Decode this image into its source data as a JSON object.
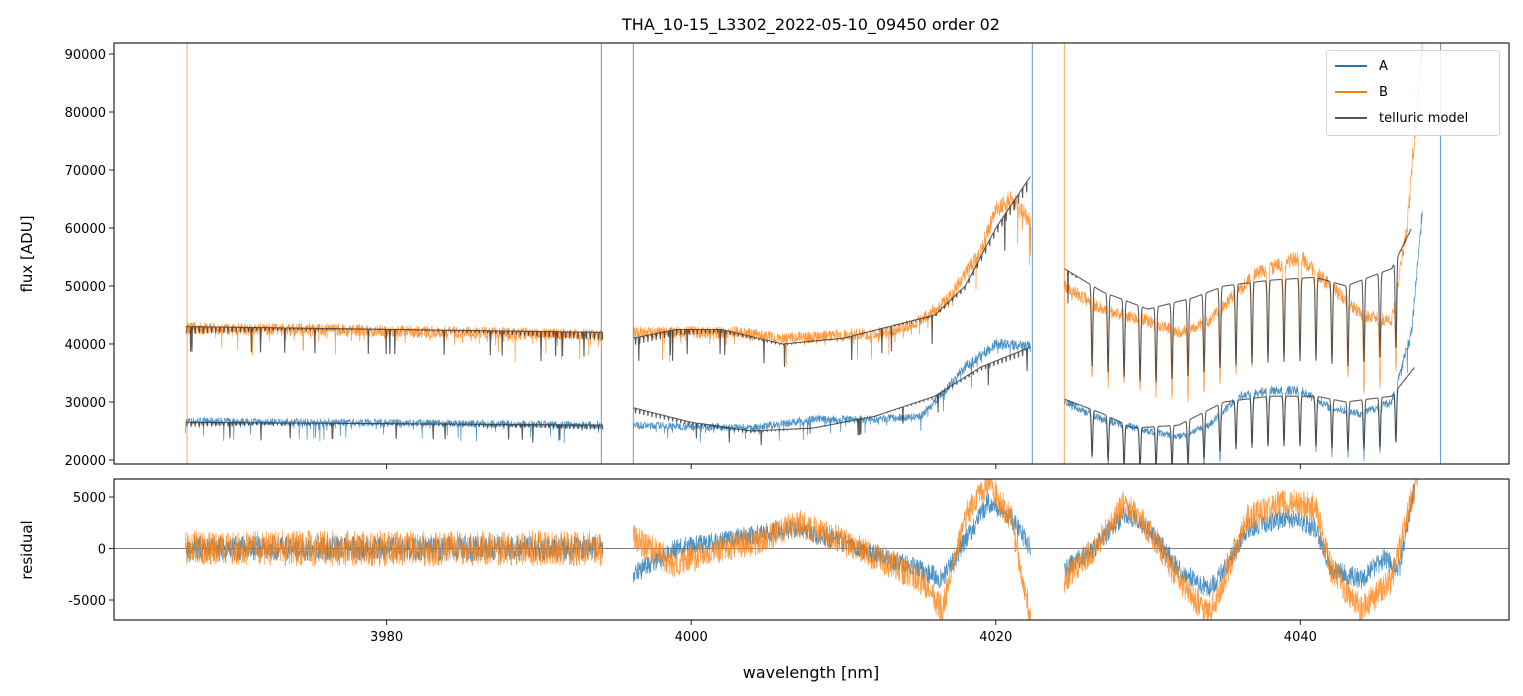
{
  "chart_data": [
    {
      "type": "line",
      "title": "THA_10-15_L3302_2022-05-10_09450  order 02",
      "xlabel": "",
      "ylabel": "flux [ADU]",
      "xlim": [
        3962.1,
        4053.7
      ],
      "ylim": [
        19300,
        91900
      ],
      "yticks": [
        20000,
        30000,
        40000,
        50000,
        60000,
        70000,
        80000,
        90000
      ],
      "xticks": [
        3980,
        4000,
        4020,
        4040
      ],
      "legend": {
        "placement": "top-right",
        "entries": [
          "A",
          "B",
          "telluric model"
        ]
      },
      "colors": {
        "A": "#1f77b4",
        "B": "#ff7f0e",
        "telluric model": "#555555"
      },
      "series": [
        {
          "name": "A",
          "segments": [
            [
              [
                3966.8,
                26700
              ],
              [
                3975,
                26500
              ],
              [
                3985,
                26300
              ],
              [
                3994.2,
                26000
              ]
            ],
            [
              [
                3996.2,
                26000
              ],
              [
                4000,
                25800
              ],
              [
                4004,
                25500
              ],
              [
                4008,
                27000
              ],
              [
                4012,
                27000
              ],
              [
                4015,
                27500
              ],
              [
                4016,
                30000
              ],
              [
                4018,
                36000
              ],
              [
                4020,
                40000
              ],
              [
                4022.3,
                39500
              ]
            ],
            [
              [
                4024.5,
                30000
              ],
              [
                4027,
                27000
              ],
              [
                4030,
                25000
              ],
              [
                4032,
                24000
              ],
              [
                4034,
                26000
              ],
              [
                4036,
                31000
              ],
              [
                4038,
                32000
              ],
              [
                4040,
                32000
              ],
              [
                4042,
                29000
              ],
              [
                4044,
                28000
              ],
              [
                4046,
                30000
              ],
              [
                4047.3,
                42000
              ],
              [
                4048,
                63000
              ]
            ]
          ]
        },
        {
          "name": "B",
          "segments": [
            [
              [
                3966.8,
                42700
              ],
              [
                3975,
                42500
              ],
              [
                3985,
                42000
              ],
              [
                3994.2,
                41500
              ]
            ],
            [
              [
                3996.2,
                42000
              ],
              [
                4003,
                42000
              ],
              [
                4006,
                41000
              ],
              [
                4010,
                41500
              ],
              [
                4013,
                42000
              ],
              [
                4015,
                44000
              ],
              [
                4017,
                48000
              ],
              [
                4019,
                56000
              ],
              [
                4020,
                63000
              ],
              [
                4021,
                65000
              ],
              [
                4022.3,
                61000
              ]
            ],
            [
              [
                4024.5,
                50000
              ],
              [
                4027,
                46000
              ],
              [
                4030,
                44000
              ],
              [
                4032,
                42000
              ],
              [
                4034,
                44000
              ],
              [
                4037,
                52000
              ],
              [
                4040,
                55000
              ],
              [
                4042,
                50000
              ],
              [
                4044,
                45000
              ],
              [
                4046,
                44000
              ],
              [
                4047,
                60000
              ],
              [
                4048,
                92000
              ]
            ]
          ]
        },
        {
          "name": "telluric model (A)",
          "segments": [
            [
              [
                3966.8,
                26500
              ],
              [
                3994.2,
                26000
              ]
            ],
            [
              [
                3996.2,
                29000
              ],
              [
                4000,
                26500
              ],
              [
                4004,
                25000
              ],
              [
                4008,
                25500
              ],
              [
                4012,
                27500
              ],
              [
                4016,
                31000
              ],
              [
                4019,
                36000
              ],
              [
                4022.3,
                39500
              ]
            ],
            [
              [
                4024.5,
                30500
              ],
              [
                4027,
                28000
              ],
              [
                4029,
                25500
              ],
              [
                4032,
                26000
              ],
              [
                4035,
                30000
              ],
              [
                4038,
                31000
              ],
              [
                4041,
                31000
              ],
              [
                4043,
                30000
              ],
              [
                4046,
                31000
              ],
              [
                4047.5,
                36000
              ]
            ]
          ]
        },
        {
          "name": "telluric model (B)",
          "segments": [
            [
              [
                3966.8,
                43000
              ],
              [
                3994.2,
                42000
              ]
            ],
            [
              [
                3996.2,
                41000
              ],
              [
                3999,
                42500
              ],
              [
                4002,
                42500
              ],
              [
                4006,
                40000
              ],
              [
                4010,
                41000
              ],
              [
                4013,
                43000
              ],
              [
                4016,
                45000
              ],
              [
                4018,
                50000
              ],
              [
                4020,
                60000
              ],
              [
                4022.3,
                69000
              ]
            ],
            [
              [
                4024.5,
                53000
              ],
              [
                4027,
                49000
              ],
              [
                4030,
                46000
              ],
              [
                4033,
                48000
              ],
              [
                4035,
                50000
              ],
              [
                4038,
                51000
              ],
              [
                4041,
                51500
              ],
              [
                4043,
                50000
              ],
              [
                4046,
                53000
              ],
              [
                4047.3,
                60000
              ]
            ]
          ]
        }
      ]
    },
    {
      "type": "line",
      "xlabel": "wavelength [nm]",
      "ylabel": "residual",
      "xlim": [
        3962.1,
        4053.7
      ],
      "ylim": [
        -6940,
        6750
      ],
      "yticks": [
        -5000,
        0,
        5000
      ],
      "xticks": [
        3980,
        4000,
        4020,
        4040
      ],
      "series": [
        {
          "name": "A",
          "segments": [
            [
              [
                3966.8,
                0
              ],
              [
                3994.2,
                0
              ]
            ],
            [
              [
                3996.2,
                -2500
              ],
              [
                3999,
                0
              ],
              [
                4003,
                1000
              ],
              [
                4007,
                2000
              ],
              [
                4011,
                0
              ],
              [
                4015,
                -2000
              ],
              [
                4016.5,
                -3000
              ],
              [
                4018.5,
                2000
              ],
              [
                4019.5,
                4500
              ],
              [
                4021,
                3000
              ],
              [
                4022.3,
                0
              ]
            ],
            [
              [
                4024.5,
                -2000
              ],
              [
                4026.5,
                0
              ],
              [
                4028.5,
                3500
              ],
              [
                4030,
                2000
              ],
              [
                4032,
                -2000
              ],
              [
                4034,
                -4000
              ],
              [
                4035,
                -2000
              ],
              [
                4036.5,
                2000
              ],
              [
                4039,
                3000
              ],
              [
                4041,
                2000
              ],
              [
                4042,
                -2000
              ],
              [
                4044,
                -3000
              ],
              [
                4045.5,
                -1000
              ],
              [
                4046.5,
                -2000
              ],
              [
                4047.5,
                6000
              ]
            ]
          ]
        },
        {
          "name": "B",
          "segments": [
            [
              [
                3966.8,
                0
              ],
              [
                3994.2,
                0
              ]
            ],
            [
              [
                3996.2,
                1000
              ],
              [
                3999,
                -1500
              ],
              [
                4002,
                0
              ],
              [
                4005,
                1000
              ],
              [
                4007,
                2500
              ],
              [
                4011,
                0
              ],
              [
                4015,
                -3000
              ],
              [
                4016.5,
                -6000
              ],
              [
                4018,
                3000
              ],
              [
                4019.5,
                6500
              ],
              [
                4021,
                3000
              ],
              [
                4022.3,
                -7000
              ]
            ],
            [
              [
                4024.5,
                -3000
              ],
              [
                4026.5,
                0
              ],
              [
                4028.5,
                4500
              ],
              [
                4030,
                2000
              ],
              [
                4032,
                -3000
              ],
              [
                4034,
                -6500
              ],
              [
                4035,
                -3000
              ],
              [
                4036.5,
                3000
              ],
              [
                4039,
                4500
              ],
              [
                4041,
                4000
              ],
              [
                4042,
                -2000
              ],
              [
                4044,
                -6000
              ],
              [
                4046,
                -3000
              ],
              [
                4047.7,
                7000
              ]
            ]
          ]
        }
      ]
    }
  ]
}
